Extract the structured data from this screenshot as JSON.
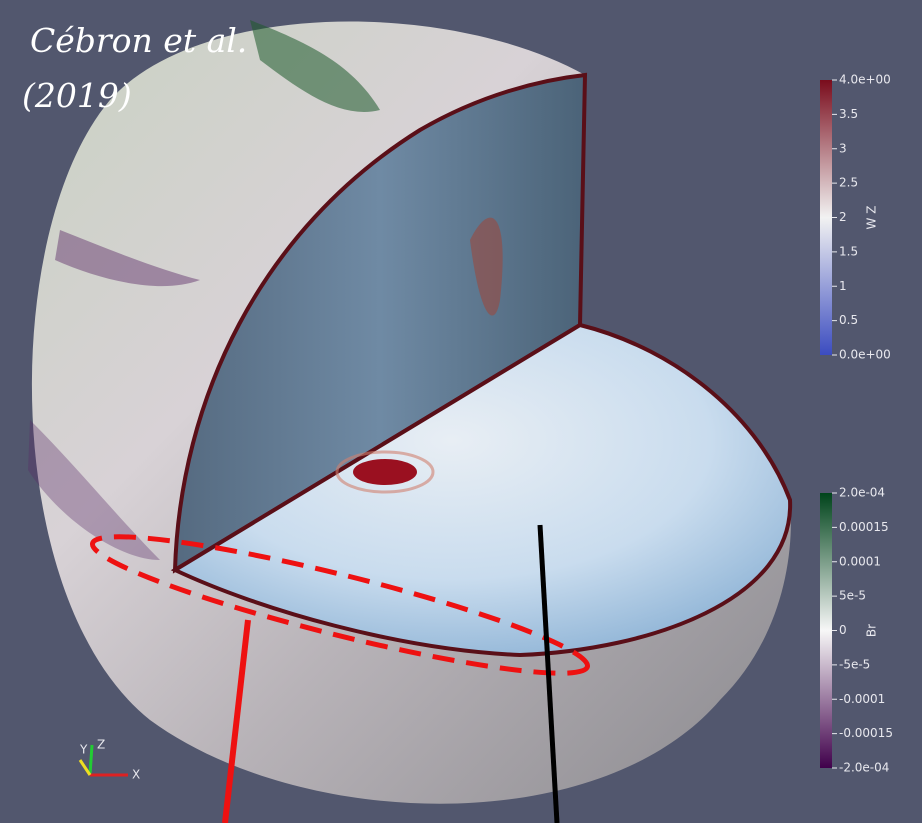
{
  "citation": [
    "Cébron et al.",
    "(2019)"
  ],
  "orientation_axes": {
    "x": "X",
    "y": "Y",
    "z": "Z"
  },
  "colorbars": [
    {
      "title": "W Z",
      "range": [
        0,
        4
      ],
      "colors": [
        "#3b4cc0",
        "#f2f2f2",
        "#7a0c1c"
      ],
      "ticks": [
        {
          "value": 4,
          "label": "4.0e+00"
        },
        3.5,
        3,
        2.5,
        2,
        1.5,
        1,
        0.5,
        {
          "value": 0,
          "label": "0.0e+00"
        }
      ]
    },
    {
      "title": "Br",
      "range": [
        -0.0002,
        0.0002
      ],
      "colors": [
        "#40004b",
        "#f7f7f7",
        "#00441b"
      ],
      "ticks": [
        {
          "value": 0.0002,
          "label": "2.0e-04"
        },
        0.00015,
        0.0001,
        {
          "value": 5e-05,
          "label": "5e-5"
        },
        0,
        {
          "value": -5e-05,
          "label": "-5e-5"
        },
        -0.0001,
        -0.00015,
        {
          "value": -0.0002,
          "label": "-2.0e-04"
        }
      ]
    }
  ]
}
